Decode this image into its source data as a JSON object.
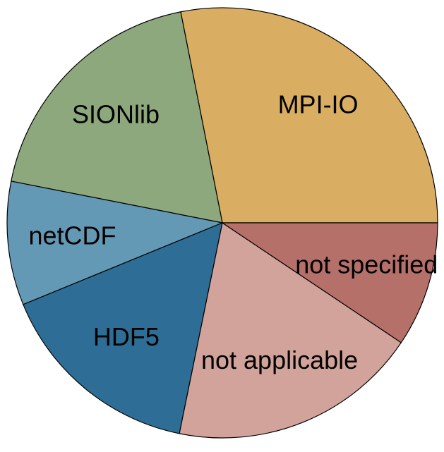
{
  "chart_data": {
    "type": "pie",
    "categories": [
      "MPI-IO",
      "SIONlib",
      "netCDF",
      "HDF5",
      "not applicable",
      "not specified"
    ],
    "values": [
      28.1,
      18.8,
      9.3,
      15.6,
      18.8,
      9.4
    ],
    "colors": [
      "#d9ae62",
      "#8ca87c",
      "#6499b5",
      "#2e6e96",
      "#d2a39b",
      "#b5706a"
    ]
  }
}
